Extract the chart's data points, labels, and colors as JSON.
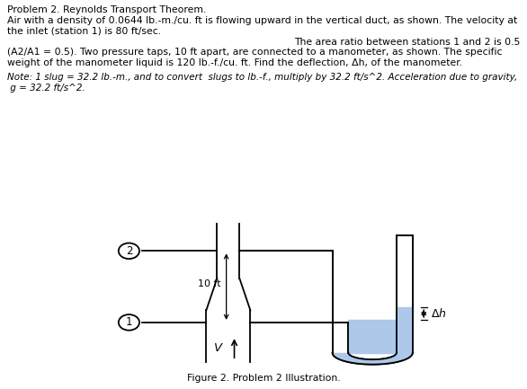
{
  "title_line1": "Problem 2. Reynolds Transport Theorem.",
  "text_line2": "Air with a density of 0.0644 lb.-m./cu. ft is flowing upward in the vertical duct, as shown. The velocity at",
  "text_line3": "the inlet (station 1) is 80 ft/sec.",
  "text_line4_right": "The area ratio between stations 1 and 2 is 0.5",
  "text_line5": "(A2/A1 = 0.5). Two pressure taps, 10 ft apart, are connected to a manometer, as shown. The specific",
  "text_line6": "weight of the manometer liquid is 120 lb.-f./cu. ft. Find the deflection, Δh, of the manometer.",
  "note_line1": "Note: 1 slug = 32.2 lb.-m., and to convert  slugs to lb.-f., multiply by 32.2 ft/s^2. Acceleration due to gravity,",
  "note_line2": " g = 32.2 ft/s^2.",
  "figure_caption": "Figure 2. Problem 2 Illustration.",
  "label_10ft": "10 ft",
  "label_V": "V",
  "label_Deltah": "Δh",
  "station1_label": "1",
  "station2_label": "2",
  "manometer_fluid_color": "#adc8e8",
  "background_color": "#ffffff",
  "text_color": "#000000",
  "diagram_color": "#000000"
}
